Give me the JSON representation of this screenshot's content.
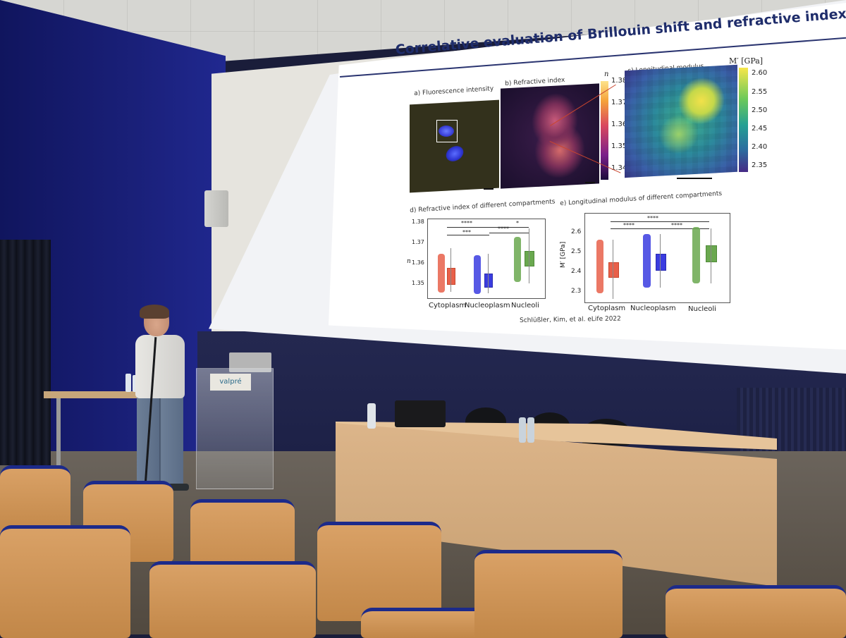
{
  "slide": {
    "title": "Correlative evaluation of Brillouin shift and refractive index",
    "panel_a_caption": "a) Fluorescence intensity",
    "panel_b_caption": "b) Refractive index",
    "panel_c_caption": "c) Longitudinal modulus",
    "panel_d_caption": "d) Refractive index of different compartments",
    "panel_e_caption": "e) Longitudinal modulus of different compartments",
    "colorbar_n_symbol": "n",
    "colorbar_n_ticks": [
      "1.38",
      "1.37",
      "1.36",
      "1.35",
      "1.34"
    ],
    "colorbar_m_label": "M′ [GPa]",
    "colorbar_m_ticks": [
      "2.60",
      "2.55",
      "2.50",
      "2.45",
      "2.40",
      "2.35"
    ],
    "plot_d": {
      "ylabel": "n",
      "yticks": [
        "1.38",
        "1.37",
        "1.36",
        "1.35"
      ],
      "categories": [
        "Cytoplasm",
        "Nucleoplasm",
        "Nucleoli"
      ],
      "sig_top": "****",
      "sig_mid_left": "***",
      "sig_mid_right": "****",
      "sig_star": "*",
      "colors": [
        "#e8604a",
        "#3a3ce0",
        "#6aa84f"
      ]
    },
    "plot_e": {
      "ylabel": "M′ [GPa]",
      "yticks": [
        "2.6",
        "2.5",
        "2.4",
        "2.3"
      ],
      "categories": [
        "Cytoplasm",
        "Nucleoplasm",
        "Nucleoli"
      ],
      "sig_top": "****",
      "sig_mid_left": "****",
      "sig_mid_right": "****",
      "colors": [
        "#e8604a",
        "#3a3ce0",
        "#6aa84f"
      ]
    },
    "citation": "Schlüßler, Kim, et al. eLife 2022"
  },
  "room": {
    "lectern_sign": "valpré"
  }
}
